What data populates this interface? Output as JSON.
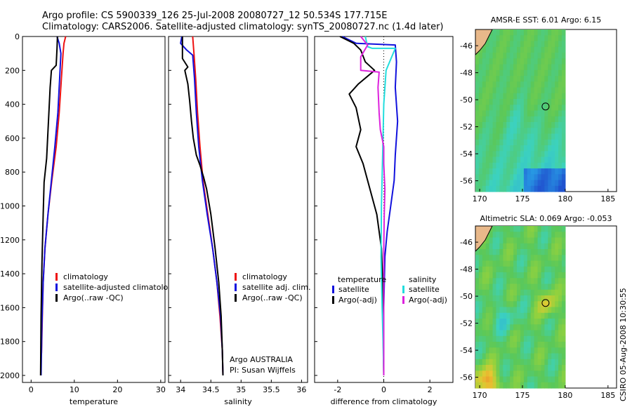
{
  "figure": {
    "title_line1": "Argo profile: CS 5900339_126 25-Jul-2008 20080727_12 50.534S 177.715E",
    "title_line2": "Climatology: CARS2006. Satellite-adjusted climatology: synTS_20080727.nc (1.4d later)",
    "side_label": "CSIRO 05-Aug-2008 10:30:55",
    "credit_line1": "Argo AUSTRALIA",
    "credit_line2": "PI: Susan Wijffels"
  },
  "colors": {
    "climatology": "#ee1111",
    "satellite": "#1111dd",
    "argo": "#000000",
    "salinity_sat": "#22dddd",
    "salinity_argo": "#dd22dd",
    "land": "#e8b88a"
  },
  "chart_data": [
    {
      "type": "line",
      "xlabel": "temperature",
      "ylabel": "",
      "xlim": [
        -2,
        31
      ],
      "ylim": [
        2050,
        0
      ],
      "yticks": [
        0,
        200,
        400,
        600,
        800,
        1000,
        1200,
        1400,
        1600,
        1800,
        2000
      ],
      "xticks": [
        0,
        10,
        20,
        30
      ],
      "legend": [
        "climatology",
        "satellite-adjusted climatology",
        "Argo(..raw -QC)"
      ],
      "series": [
        {
          "name": "climatology",
          "color": "climatology",
          "points": [
            [
              8.0,
              0
            ],
            [
              7.6,
              40
            ],
            [
              7.4,
              100
            ],
            [
              7.0,
              250
            ],
            [
              6.5,
              450
            ],
            [
              5.8,
              650
            ],
            [
              4.8,
              850
            ],
            [
              3.9,
              1050
            ],
            [
              3.2,
              1250
            ],
            [
              2.8,
              1450
            ],
            [
              2.6,
              1650
            ],
            [
              2.4,
              1870
            ]
          ]
        },
        {
          "name": "satellite-adjusted climatology",
          "color": "satellite",
          "points": [
            [
              6.0,
              0
            ],
            [
              6.5,
              40
            ],
            [
              6.9,
              100
            ],
            [
              6.6,
              250
            ],
            [
              6.2,
              450
            ],
            [
              5.5,
              650
            ],
            [
              4.7,
              850
            ],
            [
              3.9,
              1050
            ],
            [
              3.2,
              1250
            ],
            [
              2.8,
              1450
            ],
            [
              2.5,
              1700
            ],
            [
              2.3,
              2000
            ]
          ]
        },
        {
          "name": "Argo(..raw -QC)",
          "color": "argo",
          "points": [
            [
              6.1,
              0
            ],
            [
              6.0,
              70
            ],
            [
              5.8,
              170
            ],
            [
              4.7,
              200
            ],
            [
              4.4,
              300
            ],
            [
              4.1,
              460
            ],
            [
              3.9,
              560
            ],
            [
              3.6,
              720
            ],
            [
              3.0,
              860
            ],
            [
              2.8,
              1050
            ],
            [
              2.5,
              1350
            ],
            [
              2.3,
              1650
            ],
            [
              2.2,
              2000
            ]
          ]
        }
      ]
    },
    {
      "type": "line",
      "xlabel": "salinity",
      "ylabel": "",
      "xlim": [
        33.8,
        36.1
      ],
      "ylim": [
        2050,
        0
      ],
      "xticks": [
        34,
        34.5,
        35,
        35.5,
        36
      ],
      "legend": [
        "climatology",
        "satellite adj. clim.",
        "Argo(..raw -QC)"
      ],
      "series": [
        {
          "name": "climatology",
          "color": "climatology",
          "points": [
            [
              34.2,
              0
            ],
            [
              34.22,
              100
            ],
            [
              34.25,
              250
            ],
            [
              34.28,
              450
            ],
            [
              34.32,
              650
            ],
            [
              34.37,
              850
            ],
            [
              34.45,
              1050
            ],
            [
              34.53,
              1250
            ],
            [
              34.6,
              1450
            ],
            [
              34.65,
              1650
            ],
            [
              34.69,
              1850
            ],
            [
              34.7,
              2000
            ]
          ]
        },
        {
          "name": "satellite adj. clim.",
          "color": "satellite",
          "points": [
            [
              34.02,
              0
            ],
            [
              34.0,
              40
            ],
            [
              34.1,
              80
            ],
            [
              34.2,
              110
            ],
            [
              34.23,
              250
            ],
            [
              34.26,
              450
            ],
            [
              34.3,
              650
            ],
            [
              34.36,
              850
            ],
            [
              34.44,
              1050
            ],
            [
              34.53,
              1250
            ],
            [
              34.6,
              1450
            ],
            [
              34.66,
              1650
            ],
            [
              34.69,
              1850
            ],
            [
              34.7,
              2000
            ]
          ]
        },
        {
          "name": "Argo(..raw -QC)",
          "color": "argo",
          "points": [
            [
              34.03,
              0
            ],
            [
              34.03,
              130
            ],
            [
              34.12,
              180
            ],
            [
              34.07,
              200
            ],
            [
              34.12,
              280
            ],
            [
              34.15,
              380
            ],
            [
              34.18,
              500
            ],
            [
              34.21,
              600
            ],
            [
              34.26,
              700
            ],
            [
              34.32,
              760
            ],
            [
              34.38,
              830
            ],
            [
              34.43,
              900
            ],
            [
              34.5,
              1050
            ],
            [
              34.57,
              1250
            ],
            [
              34.63,
              1450
            ],
            [
              34.67,
              1650
            ],
            [
              34.69,
              1850
            ],
            [
              34.7,
              2000
            ]
          ]
        }
      ]
    },
    {
      "type": "line",
      "xlabel": "difference from climatology",
      "ylabel": "",
      "xlim": [
        -3.0,
        3.0
      ],
      "ylim": [
        2050,
        0
      ],
      "xticks": [
        -2,
        0,
        2
      ],
      "legend_left_title": "temperature",
      "legend_right_title": "salinity",
      "legend": [
        "satellite",
        "Argo(-adj)",
        "satellite",
        "Argo(-adj)"
      ],
      "series": [
        {
          "name": "temperature satellite",
          "color": "satellite",
          "points": [
            [
              -1.8,
              0
            ],
            [
              -1.2,
              40
            ],
            [
              0.5,
              50
            ],
            [
              0.55,
              150
            ],
            [
              0.5,
              300
            ],
            [
              0.6,
              500
            ],
            [
              0.5,
              700
            ],
            [
              0.45,
              850
            ],
            [
              0.3,
              1000
            ],
            [
              0.15,
              1150
            ],
            [
              0.05,
              1300
            ],
            [
              0.0,
              1600
            ],
            [
              0.0,
              2000
            ]
          ]
        },
        {
          "name": "temperature Argo(-adj)",
          "color": "argo",
          "points": [
            [
              -1.9,
              0
            ],
            [
              -1.3,
              40
            ],
            [
              -1.0,
              80
            ],
            [
              -0.8,
              150
            ],
            [
              -0.4,
              200
            ],
            [
              -1.1,
              280
            ],
            [
              -1.5,
              340
            ],
            [
              -1.2,
              420
            ],
            [
              -1.0,
              550
            ],
            [
              -1.2,
              650
            ],
            [
              -0.9,
              750
            ],
            [
              -0.6,
              900
            ],
            [
              -0.3,
              1050
            ],
            [
              -0.1,
              1250
            ],
            [
              -0.05,
              1450
            ],
            [
              -0.03,
              1700
            ],
            [
              0.0,
              2000
            ]
          ]
        },
        {
          "name": "salinity satellite",
          "color": "salinity_sat",
          "points": [
            [
              -0.8,
              0
            ],
            [
              -0.7,
              60
            ],
            [
              -0.5,
              70
            ],
            [
              0.5,
              70
            ],
            [
              0.1,
              200
            ],
            [
              0.0,
              400
            ],
            [
              -0.05,
              700
            ],
            [
              -0.1,
              1000
            ],
            [
              -0.12,
              1300
            ],
            [
              -0.07,
              1600
            ],
            [
              -0.03,
              1800
            ],
            [
              0.0,
              2000
            ]
          ]
        },
        {
          "name": "salinity Argo(-adj)",
          "color": "salinity_argo",
          "points": [
            [
              -1.0,
              0
            ],
            [
              -0.7,
              50
            ],
            [
              -1.0,
              120
            ],
            [
              -1.0,
              200
            ],
            [
              -0.2,
              210
            ],
            [
              -0.25,
              300
            ],
            [
              -0.2,
              450
            ],
            [
              -0.15,
              550
            ],
            [
              0.0,
              650
            ],
            [
              0.0,
              750
            ],
            [
              0.05,
              900
            ],
            [
              0.02,
              1050
            ],
            [
              0.0,
              1250
            ],
            [
              0.0,
              1500
            ],
            [
              0.0,
              2000
            ]
          ]
        }
      ]
    },
    {
      "type": "heatmap",
      "title": "AMSR-E SST: 6.01 Argo: 6.15",
      "xticks": [
        170,
        175,
        180,
        185
      ],
      "yticks": [
        -46,
        -48,
        -50,
        -52,
        -54,
        -56
      ],
      "xlim": [
        169.5,
        186
      ],
      "ylim": [
        -56.8,
        -44.8
      ],
      "argo_position": [
        177.7,
        -50.5
      ]
    },
    {
      "type": "heatmap",
      "title": "Altimetric SLA: 0.069 Argo: -0.053",
      "xticks": [
        170,
        175,
        180,
        185
      ],
      "yticks": [
        -46,
        -48,
        -50,
        -52,
        -54,
        -56
      ],
      "xlim": [
        169.5,
        186
      ],
      "ylim": [
        -56.8,
        -44.8
      ],
      "argo_position": [
        177.7,
        -50.5
      ]
    }
  ]
}
